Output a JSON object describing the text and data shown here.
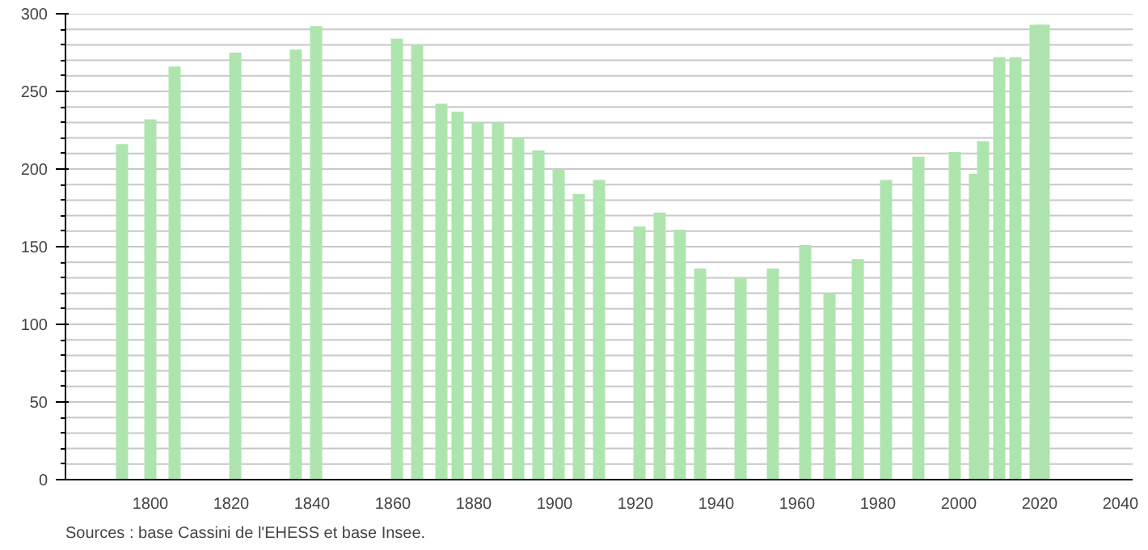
{
  "chart_data": {
    "type": "bar",
    "color": "#aee5ae",
    "x": [
      1793,
      1800,
      1806,
      1821,
      1836,
      1841,
      1861,
      1866,
      1872,
      1876,
      1881,
      1886,
      1891,
      1896,
      1901,
      1906,
      1911,
      1921,
      1926,
      1931,
      1936,
      1946,
      1954,
      1962,
      1968,
      1975,
      1982,
      1990,
      1999,
      2004,
      2006,
      2010,
      2014,
      2019,
      2021
    ],
    "values": [
      216,
      232,
      266,
      275,
      277,
      292,
      284,
      280,
      242,
      237,
      230,
      230,
      220,
      212,
      200,
      184,
      193,
      163,
      172,
      161,
      136,
      130,
      136,
      151,
      120,
      142,
      193,
      208,
      211,
      197,
      218,
      272,
      272,
      293,
      293
    ],
    "xlim": [
      1779,
      2043
    ],
    "xticks": [
      1800,
      1820,
      1840,
      1860,
      1880,
      1900,
      1920,
      1940,
      1960,
      1980,
      2000,
      2020,
      2040
    ],
    "ylim": [
      0,
      300
    ],
    "yticks": [
      0,
      50,
      100,
      150,
      200,
      250,
      300
    ],
    "grid": "y",
    "annotations": [
      "Sources : base Cassini de l'EHESS et base Insee."
    ]
  }
}
